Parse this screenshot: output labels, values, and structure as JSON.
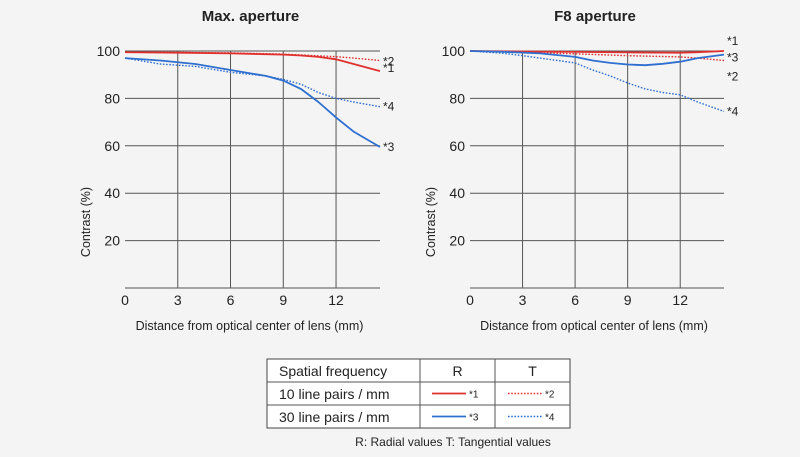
{
  "chart_data": [
    {
      "type": "line",
      "title": "Max. aperture",
      "xlabel": "Distance from optical center of lens (mm)",
      "ylabel": "Contrast (%)",
      "xlim": [
        0,
        14.5
      ],
      "ylim": [
        0,
        100
      ],
      "xticks": [
        0,
        3,
        6,
        9,
        12
      ],
      "yticks": [
        20,
        40,
        60,
        80,
        100
      ],
      "grid": true,
      "series": [
        {
          "name": "*1",
          "color": "#e0302e",
          "style": "solid",
          "x": [
            0,
            3,
            6,
            9,
            10,
            11,
            12,
            13,
            14.5
          ],
          "y": [
            99.5,
            99.3,
            99,
            98.5,
            98.1,
            97.5,
            96.5,
            94.5,
            91.5
          ]
        },
        {
          "name": "*2",
          "color": "#e0302e",
          "style": "dotted",
          "x": [
            0,
            3,
            6,
            9,
            12,
            13,
            14.5
          ],
          "y": [
            99.5,
            99.4,
            99.2,
            98.7,
            97.6,
            97,
            96
          ]
        },
        {
          "name": "*3",
          "color": "#2e6fd0",
          "style": "solid",
          "x": [
            0,
            2,
            4,
            6,
            8,
            9,
            10,
            11,
            12,
            13,
            14.5
          ],
          "y": [
            97,
            96,
            94.5,
            92,
            89.5,
            87.5,
            84,
            78.5,
            72,
            66,
            59.5
          ]
        },
        {
          "name": "*4",
          "color": "#2e6fd0",
          "style": "dotted",
          "x": [
            0,
            2,
            4,
            6,
            8,
            9,
            10,
            11,
            12,
            13,
            14.5
          ],
          "y": [
            97,
            94.5,
            93.5,
            91,
            89.5,
            88,
            86,
            82.5,
            80,
            78.5,
            76.5
          ]
        }
      ]
    },
    {
      "type": "line",
      "title": "F8 aperture",
      "xlabel": "Distance from optical center of lens (mm)",
      "ylabel": "Contrast (%)",
      "xlim": [
        0,
        14.5
      ],
      "ylim": [
        0,
        100
      ],
      "xticks": [
        0,
        3,
        6,
        9,
        12
      ],
      "yticks": [
        20,
        40,
        60,
        80,
        100
      ],
      "grid": true,
      "series": [
        {
          "name": "*1",
          "color": "#e0302e",
          "style": "solid",
          "x": [
            0,
            3,
            6,
            9,
            12,
            13,
            14.5
          ],
          "y": [
            100,
            99.8,
            99.6,
            99.4,
            99.3,
            99.5,
            100
          ]
        },
        {
          "name": "*2",
          "color": "#e0302e",
          "style": "dotted",
          "x": [
            0,
            3,
            6,
            9,
            12,
            13,
            14.5
          ],
          "y": [
            100,
            99.5,
            98.8,
            98,
            97.5,
            97,
            96
          ]
        },
        {
          "name": "*3",
          "color": "#2e6fd0",
          "style": "solid",
          "x": [
            0,
            2,
            4,
            6,
            7,
            8,
            9,
            10,
            11,
            12,
            13,
            14.5
          ],
          "y": [
            100,
            99.6,
            99,
            97.5,
            96,
            95,
            94.3,
            94,
            94.6,
            95.5,
            97,
            98.5
          ]
        },
        {
          "name": "*4",
          "color": "#2e6fd0",
          "style": "dotted",
          "x": [
            0,
            2,
            3,
            4,
            6,
            7,
            8,
            9,
            10,
            11,
            12,
            13,
            14.5
          ],
          "y": [
            100,
            99,
            98,
            97,
            95,
            92,
            89.5,
            86.5,
            84,
            82.5,
            81.5,
            78.5,
            74.5
          ]
        }
      ]
    }
  ],
  "legend": {
    "headers": [
      "Spatial frequency",
      "R",
      "T"
    ],
    "rows": [
      {
        "label": "10 line pairs / mm",
        "r_marker": "*1",
        "t_marker": "*2",
        "color": "#e0302e"
      },
      {
        "label": "30 line pairs / mm",
        "r_marker": "*3",
        "t_marker": "*4",
        "color": "#2e6fd0"
      }
    ],
    "footnote": "R: Radial values  T: Tangential values"
  }
}
